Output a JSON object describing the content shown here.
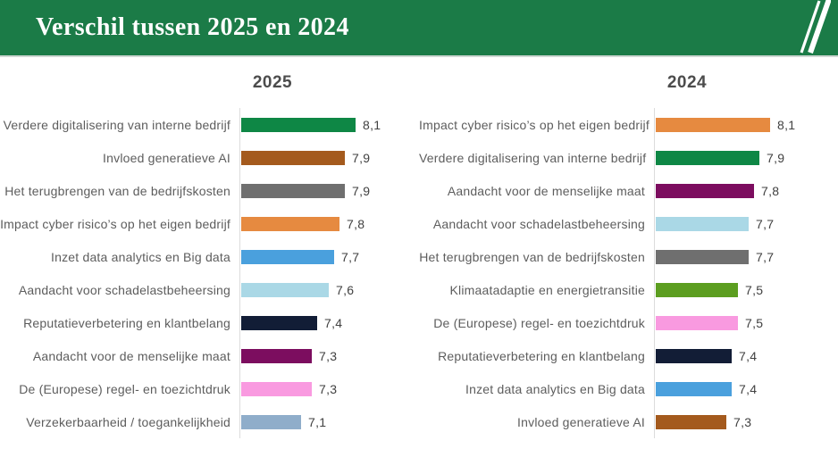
{
  "header": {
    "title": "Verschil tussen 2025 en 2024",
    "background": "#1b7b47",
    "logo_icon": "double-slash-logo"
  },
  "chart_data": [
    {
      "type": "bar",
      "orientation": "horizontal",
      "title": "2025",
      "xlim": [
        6,
        8.4
      ],
      "grid": false,
      "legend": "none",
      "value_format": "comma-decimal",
      "categories": [
        "Verdere digitalisering van interne bedrijf",
        "Invloed generatieve AI",
        "Het terugbrengen van de bedrijfskosten",
        "Impact cyber risico’s op het eigen bedrijf",
        "Inzet data analytics en Big data",
        "Aandacht voor schadelastbeheersing",
        "Reputatieverbetering en klantbelang",
        "Aandacht voor de menselijke maat",
        "De (Europese) regel- en toezichtdruk",
        "Verzekerbaarheid / toegankelijkheid"
      ],
      "values": [
        8.1,
        7.9,
        7.9,
        7.8,
        7.7,
        7.6,
        7.4,
        7.3,
        7.3,
        7.1
      ],
      "value_labels": [
        "8,1",
        "7,9",
        "7,9",
        "7,8",
        "7,7",
        "7,6",
        "7,4",
        "7,3",
        "7,3",
        "7,1"
      ],
      "bar_colors": [
        "#0e8745",
        "#a45a1d",
        "#6f6f6f",
        "#e68a40",
        "#4aa0dd",
        "#aad8e6",
        "#121d36",
        "#7c0d5f",
        "#f99ae0",
        "#8fadca"
      ]
    },
    {
      "type": "bar",
      "orientation": "horizontal",
      "title": "2024",
      "xlim": [
        6,
        8.4
      ],
      "grid": false,
      "legend": "none",
      "value_format": "comma-decimal",
      "categories": [
        "Impact cyber risico’s op het eigen bedrijf",
        "Verdere digitalisering van interne bedrijf",
        "Aandacht voor de menselijke maat",
        "Aandacht voor schadelastbeheersing",
        "Het terugbrengen van de bedrijfskosten",
        "Klimaatadaptie en energietransitie",
        "De (Europese) regel- en toezichtdruk",
        "Reputatieverbetering en klantbelang",
        "Inzet data analytics en Big data",
        "Invloed generatieve AI"
      ],
      "values": [
        8.1,
        7.9,
        7.8,
        7.7,
        7.7,
        7.5,
        7.5,
        7.4,
        7.4,
        7.3
      ],
      "value_labels": [
        "8,1",
        "7,9",
        "7,8",
        "7,7",
        "7,7",
        "7,5",
        "7,5",
        "7,4",
        "7,4",
        "7,3"
      ],
      "bar_colors": [
        "#e68a40",
        "#0e8745",
        "#7c0d5f",
        "#aad8e6",
        "#6f6f6f",
        "#5c9e20",
        "#f99ae0",
        "#121d36",
        "#4aa0dd",
        "#a45a1d"
      ]
    }
  ]
}
